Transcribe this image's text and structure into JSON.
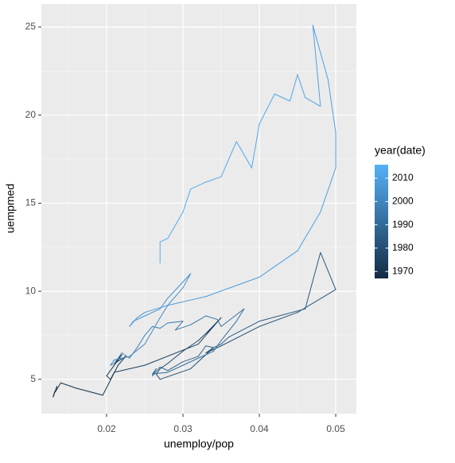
{
  "chart_data": {
    "type": "path",
    "xlabel": "unemploy/pop",
    "ylabel": "uempmed",
    "xlim": [
      0.01146,
      0.0527
    ],
    "ylim": [
      3.05,
      26.31
    ],
    "xticks": [
      0.02,
      0.03,
      0.04,
      0.05
    ],
    "yticks": [
      5,
      10,
      15,
      20,
      25
    ],
    "grid": true,
    "background": "#ebebeb",
    "colorbar": {
      "title": "year(date)",
      "lim": [
        1967,
        2015.8
      ],
      "ticks": [
        1970,
        1980,
        1990,
        2000,
        2010
      ],
      "low": "#132B43",
      "high": "#56B1F7",
      "position": "right"
    },
    "years": [
      1967.5,
      1968.0,
      1968.5,
      1969.0,
      1969.5,
      1970.0,
      1970.5,
      1971.0,
      1971.5,
      1972.0,
      1972.5,
      1973.0,
      1973.5,
      1974.0,
      1974.5,
      1975.0,
      1975.5,
      1976.0,
      1976.5,
      1977.0,
      1977.5,
      1978.0,
      1978.5,
      1979.0,
      1979.5,
      1980.0,
      1980.5,
      1981.0,
      1981.5,
      1982.0,
      1982.5,
      1983.0,
      1983.3,
      1983.6,
      1984.0,
      1984.5,
      1985.0,
      1985.5,
      1986.0,
      1986.5,
      1987.0,
      1987.5,
      1988.0,
      1988.5,
      1989.0,
      1989.5,
      1990.0,
      1990.5,
      1991.0,
      1991.5,
      1992.0,
      1992.5,
      1993.0,
      1993.5,
      1994.0,
      1994.5,
      1995.0,
      1995.5,
      1996.0,
      1996.5,
      1997.0,
      1997.5,
      1998.0,
      1998.5,
      1999.0,
      1999.5,
      2000.0,
      2000.5,
      2001.0,
      2001.5,
      2002.0,
      2002.5,
      2003.0,
      2003.5,
      2004.0,
      2004.5,
      2005.0,
      2005.5,
      2006.0,
      2006.5,
      2007.0,
      2007.5,
      2008.0,
      2008.5,
      2009.0,
      2009.3,
      2009.6,
      2009.8,
      2010.0,
      2010.2,
      2010.4,
      2010.6,
      2010.8,
      2011.0,
      2011.3,
      2011.6,
      2012.0,
      2012.3,
      2012.6,
      2013.0,
      2013.3,
      2013.6,
      2014.0,
      2014.3,
      2014.6,
      2015.0
    ],
    "x": [
      0.0132,
      0.013,
      0.0135,
      0.0133,
      0.014,
      0.016,
      0.0195,
      0.0215,
      0.0225,
      0.021,
      0.022,
      0.02,
      0.0205,
      0.021,
      0.025,
      0.032,
      0.035,
      0.033,
      0.034,
      0.032,
      0.03,
      0.028,
      0.027,
      0.0265,
      0.027,
      0.031,
      0.034,
      0.033,
      0.035,
      0.04,
      0.045,
      0.05,
      0.048,
      0.046,
      0.04,
      0.036,
      0.035,
      0.034,
      0.033,
      0.032,
      0.03,
      0.028,
      0.027,
      0.026,
      0.0265,
      0.026,
      0.028,
      0.03,
      0.034,
      0.035,
      0.037,
      0.038,
      0.035,
      0.0345,
      0.033,
      0.031,
      0.029,
      0.03,
      0.028,
      0.027,
      0.026,
      0.025,
      0.024,
      0.023,
      0.022,
      0.021,
      0.0205,
      0.021,
      0.023,
      0.025,
      0.027,
      0.028,
      0.03,
      0.031,
      0.028,
      0.027,
      0.026,
      0.025,
      0.0235,
      0.023,
      0.024,
      0.025,
      0.028,
      0.033,
      0.04,
      0.045,
      0.048,
      0.05,
      0.05,
      0.049,
      0.047,
      0.048,
      0.046,
      0.045,
      0.044,
      0.042,
      0.04,
      0.039,
      0.037,
      0.035,
      0.033,
      0.031,
      0.03,
      0.028,
      0.027,
      0.027
    ],
    "values": [
      4.3,
      4.0,
      4.6,
      4.3,
      4.8,
      4.5,
      4.1,
      5.8,
      6.3,
      5.9,
      6.4,
      5.2,
      5.0,
      5.4,
      5.8,
      7.0,
      8.5,
      7.6,
      8.0,
      7.2,
      6.6,
      5.9,
      5.6,
      5.3,
      5.0,
      5.6,
      6.8,
      6.5,
      6.9,
      8.0,
      8.8,
      10.1,
      12.2,
      9.0,
      8.3,
      7.4,
      7.0,
      6.8,
      6.9,
      6.3,
      6.0,
      5.5,
      5.7,
      5.2,
      5.6,
      5.3,
      5.4,
      5.8,
      6.6,
      7.2,
      8.3,
      9.0,
      8.0,
      8.4,
      8.6,
      8.1,
      7.8,
      8.3,
      8.2,
      7.9,
      8.0,
      7.5,
      6.8,
      6.2,
      6.5,
      5.9,
      5.8,
      6.1,
      6.3,
      7.0,
      8.5,
      9.2,
      10.2,
      11.0,
      9.6,
      9.0,
      8.8,
      8.6,
      8.3,
      8.0,
      8.5,
      8.8,
      9.2,
      9.7,
      10.8,
      12.3,
      14.5,
      17.0,
      19.0,
      22.0,
      25.1,
      20.5,
      21.0,
      22.3,
      20.8,
      21.2,
      19.5,
      17.0,
      18.5,
      16.5,
      16.2,
      15.8,
      14.5,
      13.0,
      12.8,
      11.6
    ]
  }
}
